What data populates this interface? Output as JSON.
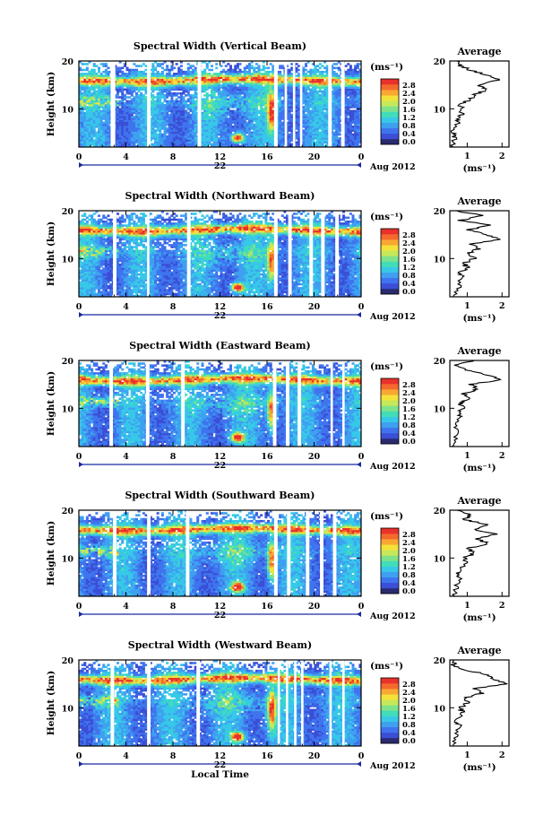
{
  "figure": {
    "date_label": "Aug 2012",
    "day_label": "22",
    "xlabel": "Local Time",
    "ylabel": "Height (km)",
    "avg_title": "Average",
    "unit_label": "(ms⁻¹)",
    "avg_xlabel": "(ms⁻¹)"
  },
  "colors": {
    "scale": [
      "#2a2a6e",
      "#3a4fd6",
      "#3f74ee",
      "#3fa0f0",
      "#37c8e8",
      "#40ddb8",
      "#7ee28a",
      "#c6e85a",
      "#f3e23a",
      "#f8a832",
      "#f46a2c",
      "#e8312a"
    ],
    "background": "#ffffff",
    "axis": "#000000",
    "time_bar": "#1a2aa0"
  },
  "chart_data": [
    {
      "type": "heatmap",
      "title": "Spectral Width (Vertical Beam)",
      "xlabel": "",
      "ylabel": "Height (km)",
      "xlim": [
        0,
        24
      ],
      "ylim": [
        2,
        20
      ],
      "xticks": [
        "0",
        "4",
        "8",
        "12",
        "16",
        "20",
        "0"
      ],
      "yticks": [
        10,
        20
      ],
      "colorbar": {
        "label": "(ms⁻¹)",
        "ticks": [
          "2.8",
          "2.4",
          "2.0",
          "1.6",
          "1.2",
          "0.8",
          "0.4",
          "0.0"
        ],
        "min": 0.0,
        "max": 2.8
      },
      "gaps": [
        [
          2.7,
          3.1
        ],
        [
          5.8,
          6.1
        ],
        [
          10.1,
          10.4
        ],
        [
          16.6,
          16.9
        ],
        [
          17.5,
          17.7
        ],
        [
          18.2,
          18.4
        ],
        [
          18.8,
          19.0
        ],
        [
          21.2,
          21.5
        ],
        [
          22.3,
          22.6
        ]
      ],
      "average_profile": {
        "title": "Average",
        "xlabel": "(ms⁻¹)",
        "xticks": [
          1,
          2
        ],
        "xlim": [
          0.5,
          2.2
        ],
        "yticks": [
          10,
          20
        ],
        "points": [
          [
            0.55,
            2
          ],
          [
            0.65,
            4
          ],
          [
            0.6,
            5
          ],
          [
            0.75,
            7
          ],
          [
            0.7,
            8
          ],
          [
            0.85,
            9
          ],
          [
            0.8,
            11
          ],
          [
            1.1,
            12
          ],
          [
            1.2,
            13
          ],
          [
            1.6,
            14
          ],
          [
            1.3,
            15
          ],
          [
            1.9,
            16
          ],
          [
            1.6,
            17
          ],
          [
            1.1,
            18
          ],
          [
            0.8,
            19
          ],
          [
            0.7,
            20
          ]
        ]
      }
    },
    {
      "type": "heatmap",
      "title": "Spectral Width (Northward Beam)",
      "xlabel": "",
      "ylabel": "Height (km)",
      "xlim": [
        0,
        24
      ],
      "ylim": [
        2,
        20
      ],
      "xticks": [
        "0",
        "4",
        "8",
        "12",
        "16",
        "20",
        "0"
      ],
      "yticks": [
        10,
        20
      ],
      "colorbar": {
        "label": "(ms⁻¹)",
        "ticks": [
          "2.8",
          "2.4",
          "2.0",
          "1.6",
          "1.2",
          "0.8",
          "0.4",
          "0.0"
        ],
        "min": 0.0,
        "max": 2.8
      },
      "gaps": [
        [
          2.9,
          3.2
        ],
        [
          5.8,
          6.0
        ],
        [
          9.2,
          9.5
        ],
        [
          16.6,
          16.9
        ],
        [
          17.8,
          18.1
        ],
        [
          19.6,
          19.9
        ],
        [
          20.6,
          20.9
        ],
        [
          21.8,
          22.1
        ]
      ],
      "average_profile": {
        "title": "Average",
        "xlabel": "(ms⁻¹)",
        "xticks": [
          1,
          2
        ],
        "xlim": [
          0.5,
          2.2
        ],
        "yticks": [
          10,
          20
        ],
        "points": [
          [
            0.6,
            2
          ],
          [
            0.75,
            4
          ],
          [
            0.85,
            6
          ],
          [
            0.8,
            7
          ],
          [
            1.0,
            8
          ],
          [
            0.9,
            9
          ],
          [
            1.2,
            10
          ],
          [
            1.0,
            11
          ],
          [
            1.3,
            12
          ],
          [
            1.1,
            13
          ],
          [
            1.9,
            14
          ],
          [
            1.6,
            15
          ],
          [
            1.0,
            16
          ],
          [
            1.7,
            17
          ],
          [
            0.8,
            18
          ],
          [
            1.4,
            19
          ],
          [
            0.7,
            20
          ]
        ]
      }
    },
    {
      "type": "heatmap",
      "title": "Spectral Width (Eastward Beam)",
      "xlabel": "",
      "ylabel": "Height (km)",
      "xlim": [
        0,
        24
      ],
      "ylim": [
        2,
        20
      ],
      "xticks": [
        "0",
        "4",
        "8",
        "12",
        "16",
        "20",
        "0"
      ],
      "yticks": [
        10,
        20
      ],
      "colorbar": {
        "label": "(ms⁻¹)",
        "ticks": [
          "2.8",
          "2.4",
          "2.0",
          "1.6",
          "1.2",
          "0.8",
          "0.4",
          "0.0"
        ],
        "min": 0.0,
        "max": 2.8
      },
      "gaps": [
        [
          2.6,
          2.9
        ],
        [
          5.7,
          6.0
        ],
        [
          8.7,
          9.0
        ],
        [
          16.5,
          16.8
        ],
        [
          17.6,
          17.9
        ],
        [
          18.6,
          18.9
        ],
        [
          21.4,
          21.6
        ],
        [
          22.4,
          22.6
        ]
      ],
      "average_profile": {
        "title": "Average",
        "xlabel": "(ms⁻¹)",
        "xticks": [
          1,
          2
        ],
        "xlim": [
          0.5,
          2.2
        ],
        "yticks": [
          10,
          20
        ],
        "points": [
          [
            0.6,
            2
          ],
          [
            0.7,
            4
          ],
          [
            0.65,
            6
          ],
          [
            0.8,
            8
          ],
          [
            0.75,
            9
          ],
          [
            0.9,
            10
          ],
          [
            0.8,
            11
          ],
          [
            1.0,
            12
          ],
          [
            0.9,
            13
          ],
          [
            1.3,
            14
          ],
          [
            1.1,
            15
          ],
          [
            2.0,
            16
          ],
          [
            1.5,
            17
          ],
          [
            1.0,
            18
          ],
          [
            0.7,
            19
          ],
          [
            1.2,
            20
          ]
        ]
      }
    },
    {
      "type": "heatmap",
      "title": "Spectral Width (Southward Beam)",
      "xlabel": "",
      "ylabel": "Height (km)",
      "xlim": [
        0,
        24
      ],
      "ylim": [
        2,
        20
      ],
      "xticks": [
        "0",
        "4",
        "8",
        "12",
        "16",
        "20",
        "0"
      ],
      "yticks": [
        10,
        20
      ],
      "colorbar": {
        "label": "(ms⁻¹)",
        "ticks": [
          "2.8",
          "2.4",
          "2.0",
          "1.6",
          "1.2",
          "0.8",
          "0.4",
          "0.0"
        ],
        "min": 0.0,
        "max": 2.8
      },
      "gaps": [
        [
          2.9,
          3.2
        ],
        [
          5.8,
          6.1
        ],
        [
          9.1,
          9.4
        ],
        [
          16.6,
          16.9
        ],
        [
          17.7,
          18.0
        ],
        [
          19.3,
          19.6
        ],
        [
          20.5,
          20.8
        ],
        [
          21.6,
          21.9
        ]
      ],
      "average_profile": {
        "title": "Average",
        "xlabel": "(ms⁻¹)",
        "xticks": [
          1,
          2
        ],
        "xlim": [
          0.5,
          2.2
        ],
        "yticks": [
          10,
          20
        ],
        "points": [
          [
            0.6,
            2
          ],
          [
            0.7,
            4
          ],
          [
            0.8,
            6
          ],
          [
            0.75,
            7
          ],
          [
            0.95,
            9
          ],
          [
            0.9,
            10
          ],
          [
            1.2,
            11
          ],
          [
            1.0,
            12
          ],
          [
            1.6,
            13
          ],
          [
            1.3,
            14
          ],
          [
            1.8,
            15
          ],
          [
            1.2,
            16
          ],
          [
            1.6,
            17
          ],
          [
            0.9,
            18
          ],
          [
            1.1,
            19
          ],
          [
            0.7,
            20
          ]
        ]
      }
    },
    {
      "type": "heatmap",
      "title": "Spectral Width (Westward Beam)",
      "xlabel": "Local Time",
      "ylabel": "Height (km)",
      "xlim": [
        0,
        24
      ],
      "ylim": [
        2,
        20
      ],
      "xticks": [
        "0",
        "4",
        "8",
        "12",
        "16",
        "20",
        "0"
      ],
      "yticks": [
        10,
        20
      ],
      "colorbar": {
        "label": "(ms⁻¹)",
        "ticks": [
          "2.8",
          "2.4",
          "2.0",
          "1.6",
          "1.2",
          "0.8",
          "0.4",
          "0.0"
        ],
        "min": 0.0,
        "max": 2.8
      },
      "gaps": [
        [
          2.7,
          3.0
        ],
        [
          5.8,
          6.1
        ],
        [
          10.0,
          10.3
        ],
        [
          16.9,
          17.1
        ],
        [
          17.6,
          17.8
        ],
        [
          18.3,
          18.5
        ],
        [
          18.9,
          19.1
        ],
        [
          21.3,
          21.5
        ],
        [
          22.4,
          22.6
        ]
      ],
      "average_profile": {
        "title": "Average",
        "xlabel": "(ms⁻¹)",
        "xticks": [
          1,
          2
        ],
        "xlim": [
          0.5,
          2.2
        ],
        "yticks": [
          10,
          20
        ],
        "points": [
          [
            0.6,
            2
          ],
          [
            0.65,
            4
          ],
          [
            0.8,
            6
          ],
          [
            0.7,
            7
          ],
          [
            0.85,
            9
          ],
          [
            0.8,
            10
          ],
          [
            1.0,
            11
          ],
          [
            0.9,
            12
          ],
          [
            1.4,
            13
          ],
          [
            1.2,
            14
          ],
          [
            2.1,
            15
          ],
          [
            1.8,
            16
          ],
          [
            1.5,
            17
          ],
          [
            0.9,
            18
          ],
          [
            0.6,
            19
          ],
          [
            0.6,
            20
          ]
        ]
      }
    }
  ]
}
